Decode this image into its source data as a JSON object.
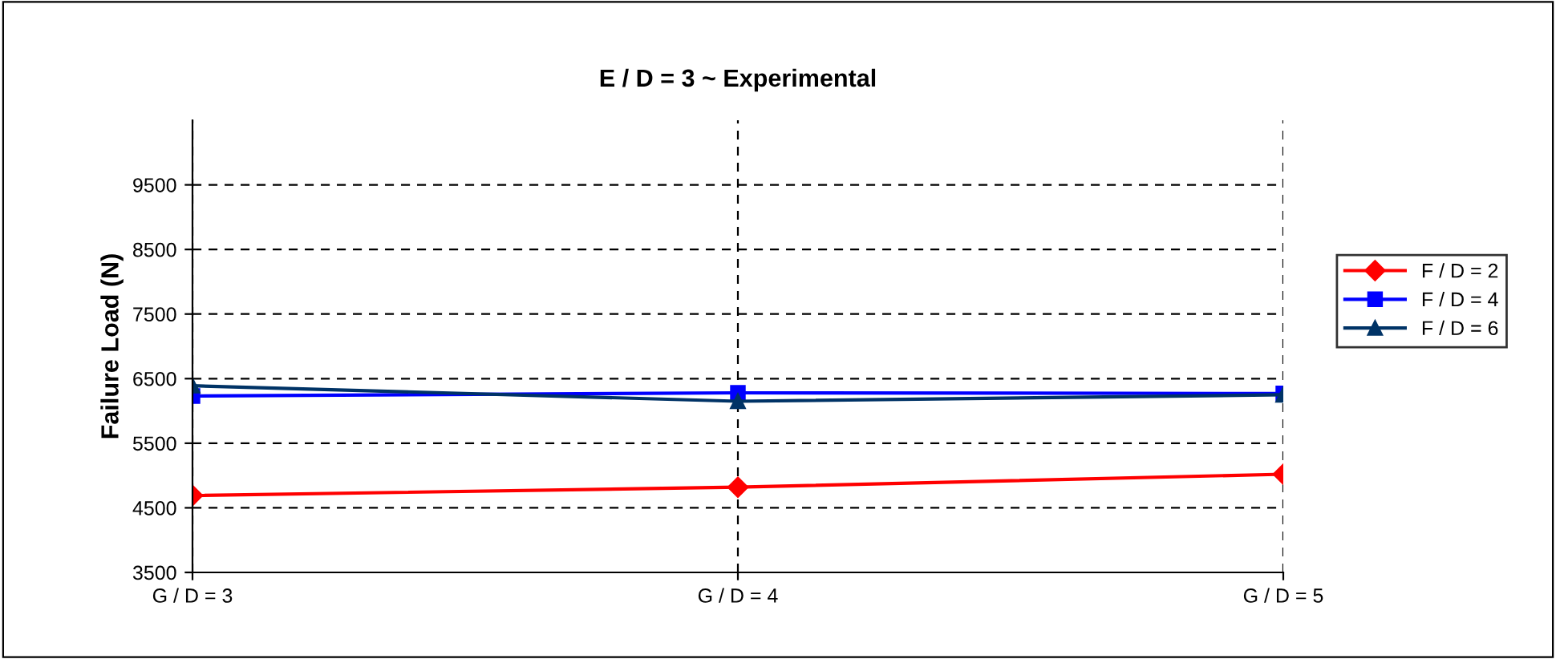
{
  "chart_data": {
    "type": "line",
    "title": "E / D = 3 ~ Experimental",
    "ylabel": "Failure Load (N)",
    "categories": [
      "G / D = 3",
      "G / D = 4",
      "G / D = 5"
    ],
    "series": [
      {
        "name": "F / D = 2",
        "color": "#ff0000",
        "marker": "diamond",
        "values": [
          4690,
          4820,
          5020
        ]
      },
      {
        "name": "F / D = 4",
        "color": "#0000ff",
        "marker": "square",
        "values": [
          6230,
          6280,
          6270
        ]
      },
      {
        "name": "F / D = 6",
        "color": "#003366",
        "marker": "triangle",
        "values": [
          6390,
          6150,
          6250
        ]
      }
    ],
    "ylim": [
      3500,
      10500
    ],
    "yticks": [
      3500,
      4500,
      5500,
      6500,
      7500,
      8500,
      9500
    ],
    "grid": true,
    "legend": "right",
    "line_style": "solid"
  }
}
